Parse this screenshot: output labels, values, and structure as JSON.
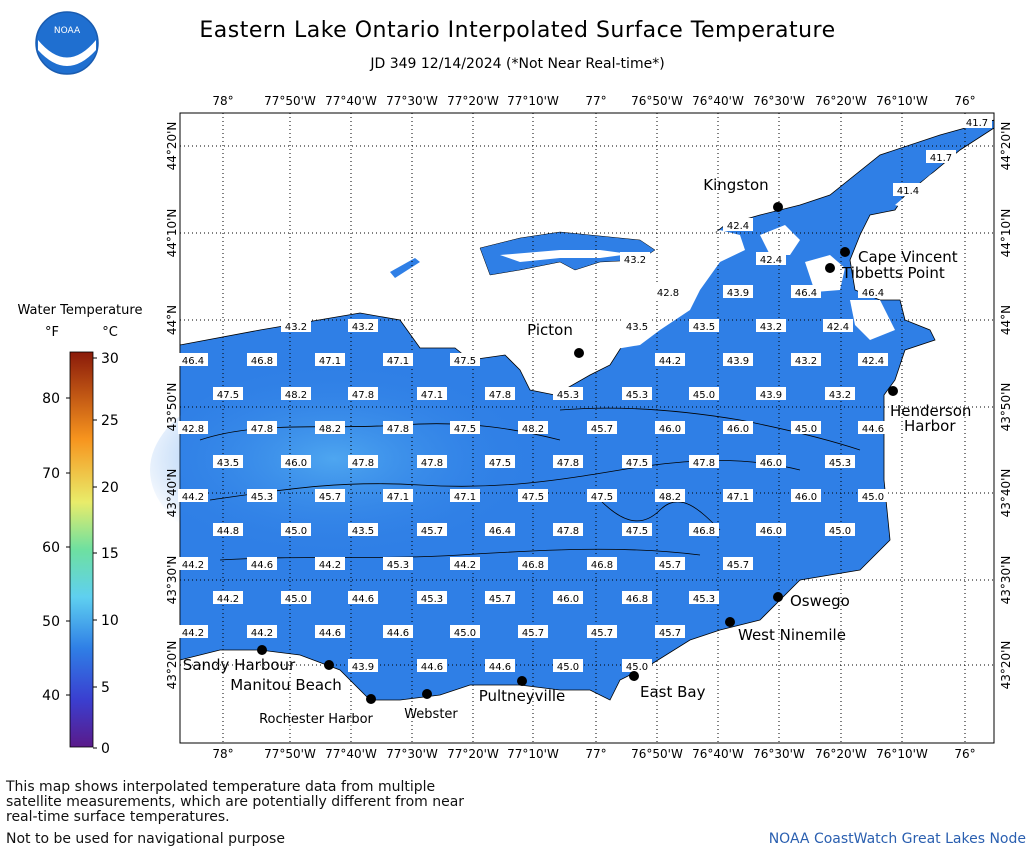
{
  "title": "Eastern Lake Ontario Interpolated Surface Temperature",
  "subtitle": "JD 349 12/14/2024 (*Not Near Real-time*)",
  "legend": {
    "title": "Water Temperature",
    "unit_f": "°F",
    "unit_c": "°C",
    "f_ticks": [
      "80",
      "70",
      "60",
      "50",
      "40"
    ],
    "c_ticks": [
      "30",
      "25",
      "20",
      "15",
      "10",
      "5",
      "0"
    ]
  },
  "x_axis_ticks": [
    "78°",
    "77°50'W",
    "77°40'W",
    "77°30'W",
    "77°20'W",
    "77°10'W",
    "77°",
    "76°50'W",
    "76°40'W",
    "76°30'W",
    "76°20'W",
    "76°10'W",
    "76°"
  ],
  "y_axis_ticks": [
    "44°20'N",
    "44°10'N",
    "44°N",
    "43°50'N",
    "43°40'N",
    "43°30'N",
    "43°20'N"
  ],
  "places": [
    "Kingston",
    "Cape Vincent",
    "Tibbetts Point",
    "Picton",
    "Henderson",
    "Harbor",
    "Oswego",
    "West Ninemile",
    "East Bay",
    "Pultneyville",
    "Webster",
    "Rochester Harbor",
    "Manitou Beach",
    "Sandy Harbour"
  ],
  "temperature_labels": [
    [
      "41.7",
      "41.7",
      "41.4",
      "42.4",
      "43.2",
      "42.4",
      "42.8",
      "43.9"
    ],
    [
      "46.4",
      "46.4",
      "43.2",
      "43.2",
      "43.5",
      "43.5",
      "43.2",
      "42.4"
    ],
    [
      "46.4",
      "46.8",
      "47.1",
      "47.1",
      "47.5",
      "44.2",
      "43.9",
      "43.2",
      "42.4"
    ],
    [
      "47.5",
      "48.2",
      "47.8",
      "47.1",
      "47.8",
      "45.3",
      "45.3",
      "45.0",
      "43.9",
      "43.2"
    ],
    [
      "42.8",
      "47.8",
      "48.2",
      "47.8",
      "47.5",
      "48.2",
      "45.7",
      "46.0",
      "46.0",
      "45.0",
      "44.6"
    ],
    [
      "43.5",
      "46.0",
      "47.8",
      "47.8",
      "47.5",
      "47.8",
      "47.5",
      "47.8",
      "46.0",
      "45.3"
    ],
    [
      "44.2",
      "45.3",
      "45.7",
      "47.1",
      "47.1",
      "47.5",
      "47.5",
      "48.2",
      "47.1",
      "46.0",
      "45.0"
    ],
    [
      "44.8",
      "45.0",
      "43.5",
      "45.7",
      "46.4",
      "47.8",
      "47.5",
      "46.8",
      "46.0",
      "45.0"
    ],
    [
      "44.2",
      "44.6",
      "44.2",
      "45.3",
      "44.2",
      "46.8",
      "46.8",
      "45.7",
      "45.7"
    ],
    [
      "44.2",
      "45.0",
      "44.6",
      "45.3",
      "45.7",
      "46.0",
      "46.8",
      "45.3"
    ],
    [
      "44.2",
      "44.2",
      "44.6",
      "44.6",
      "45.0",
      "45.7",
      "45.7",
      "45.7"
    ],
    [
      "43.9",
      "44.6",
      "44.6",
      "45.0",
      "45.0"
    ]
  ],
  "footer_note": "This map shows interpolated temperature data from multiple satellite measurements, which are potentially different from near real-time surface temperatures.",
  "footer_warning": "Not to be used for navigational purpose",
  "credit": "NOAA CoastWatch Great Lakes Node",
  "logo_text": "NOAA",
  "colors": {
    "water": "#2f7fe6",
    "water_warm": "#4aa0ee",
    "grid": "#000000",
    "credit": "#2a5fb0"
  }
}
